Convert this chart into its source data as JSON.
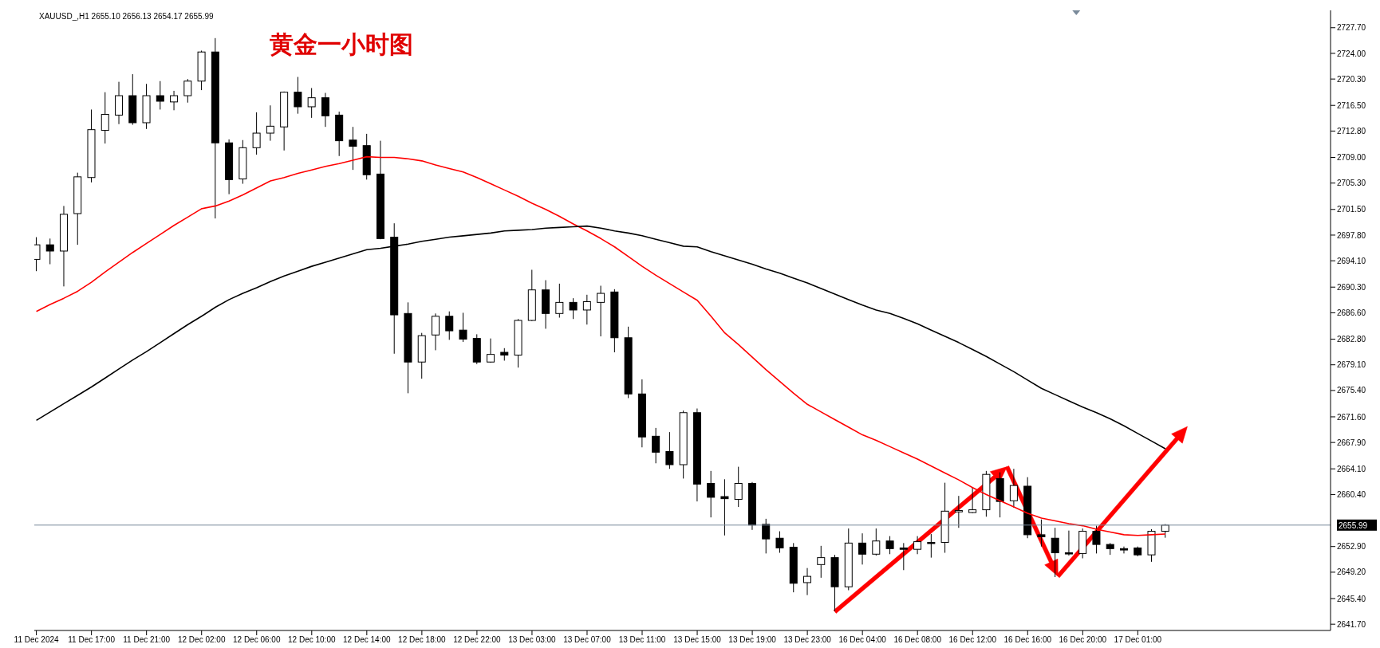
{
  "chart_data": {
    "type": "candlestick",
    "title": "黄金一小时图",
    "subtitle": "XAUUSD_,H1 2655.10 2656.13 2654.17 2655.99",
    "color": "#000000",
    "categories": [
      "11 Dec 2024",
      null,
      null,
      null,
      "11 Dec 17:00",
      null,
      null,
      null,
      "11 Dec 21:00",
      null,
      null,
      null,
      "12 Dec 02:00",
      null,
      null,
      null,
      "12 Dec 06:00",
      null,
      null,
      null,
      "12 Dec 10:00",
      null,
      null,
      null,
      "12 Dec 14:00",
      null,
      null,
      null,
      "12 Dec 18:00",
      null,
      null,
      null,
      "12 Dec 22:00",
      null,
      null,
      null,
      "13 Dec 03:00",
      null,
      null,
      null,
      "13 Dec 07:00",
      null,
      null,
      null,
      "13 Dec 11:00",
      null,
      null,
      null,
      "13 Dec 15:00",
      null,
      null,
      null,
      "13 Dec 19:00",
      null,
      null,
      null,
      "13 Dec 23:00",
      null,
      null,
      null,
      "16 Dec 04:00",
      null,
      null,
      null,
      "16 Dec 08:00",
      null,
      null,
      null,
      "16 Dec 12:00",
      null,
      null,
      null,
      "16 Dec 16:00",
      null,
      null,
      null,
      "16 Dec 20:00",
      null,
      null,
      null,
      "17 Dec 01:00",
      null,
      null
    ],
    "ohlc": [
      [
        2694.3,
        2697.5,
        2692.6,
        2696.4
      ],
      [
        2696.4,
        2697.3,
        2693.6,
        2695.5
      ],
      [
        2695.5,
        2702.0,
        2690.4,
        2700.8
      ],
      [
        2700.9,
        2706.8,
        2696.4,
        2706.2
      ],
      [
        2706.1,
        2715.9,
        2705.4,
        2713.0
      ],
      [
        2712.9,
        2718.4,
        2711.0,
        2715.2
      ],
      [
        2715.1,
        2719.9,
        2713.8,
        2717.9
      ],
      [
        2717.9,
        2721.0,
        2713.7,
        2714.0
      ],
      [
        2714.0,
        2719.6,
        2713.1,
        2717.9
      ],
      [
        2717.9,
        2720.0,
        2715.9,
        2717.1
      ],
      [
        2717.0,
        2718.6,
        2715.8,
        2717.9
      ],
      [
        2717.9,
        2720.3,
        2716.9,
        2720.0
      ],
      [
        2720.0,
        2724.4,
        2718.7,
        2724.2
      ],
      [
        2724.2,
        2726.2,
        2700.2,
        2711.1
      ],
      [
        2711.1,
        2711.6,
        2703.7,
        2705.8
      ],
      [
        2705.9,
        2711.5,
        2705.2,
        2710.4
      ],
      [
        2710.4,
        2715.5,
        2709.4,
        2712.5
      ],
      [
        2712.5,
        2716.5,
        2711.4,
        2713.5
      ],
      [
        2713.4,
        2718.5,
        2710.0,
        2718.4
      ],
      [
        2718.4,
        2720.6,
        2715.3,
        2716.3
      ],
      [
        2716.3,
        2719.0,
        2714.7,
        2717.6
      ],
      [
        2717.6,
        2718.3,
        2713.4,
        2715.0
      ],
      [
        2715.1,
        2715.6,
        2709.2,
        2711.4
      ],
      [
        2711.5,
        2713.4,
        2707.2,
        2710.6
      ],
      [
        2710.7,
        2712.4,
        2705.8,
        2706.5
      ],
      [
        2706.6,
        2711.4,
        2697.2,
        2697.3
      ],
      [
        2697.5,
        2699.5,
        2680.7,
        2686.3
      ],
      [
        2686.5,
        2688.1,
        2675.0,
        2679.5
      ],
      [
        2679.5,
        2683.7,
        2677.1,
        2683.3
      ],
      [
        2683.4,
        2686.5,
        2681.2,
        2686.1
      ],
      [
        2686.1,
        2686.8,
        2682.7,
        2684.0
      ],
      [
        2684.1,
        2686.6,
        2682.4,
        2682.8
      ],
      [
        2682.9,
        2683.5,
        2679.2,
        2679.5
      ],
      [
        2679.5,
        2682.9,
        2679.4,
        2680.6
      ],
      [
        2680.9,
        2681.5,
        2679.7,
        2680.5
      ],
      [
        2680.5,
        2685.7,
        2678.7,
        2685.5
      ],
      [
        2685.5,
        2692.8,
        2685.4,
        2689.9
      ],
      [
        2689.9,
        2691.3,
        2684.3,
        2686.5
      ],
      [
        2686.5,
        2690.8,
        2685.9,
        2688.1
      ],
      [
        2688.1,
        2688.7,
        2685.7,
        2687.0
      ],
      [
        2687.0,
        2689.2,
        2684.9,
        2688.2
      ],
      [
        2688.1,
        2690.5,
        2683.2,
        2689.4
      ],
      [
        2689.6,
        2690.0,
        2680.9,
        2683.0
      ],
      [
        2683.0,
        2684.6,
        2674.3,
        2674.9
      ],
      [
        2674.9,
        2677.0,
        2667.2,
        2668.7
      ],
      [
        2668.8,
        2670.0,
        2664.9,
        2666.5
      ],
      [
        2666.6,
        2669.4,
        2664.1,
        2664.7
      ],
      [
        2664.7,
        2672.5,
        2662.7,
        2672.2
      ],
      [
        2672.2,
        2672.8,
        2659.4,
        2661.9
      ],
      [
        2662.0,
        2663.8,
        2657.1,
        2660.0
      ],
      [
        2660.1,
        2662.6,
        2654.5,
        2659.8
      ],
      [
        2659.7,
        2664.4,
        2658.6,
        2662.0
      ],
      [
        2662.0,
        2662.2,
        2655.3,
        2656.0
      ],
      [
        2656.1,
        2656.9,
        2651.9,
        2654.0
      ],
      [
        2654.1,
        2655.1,
        2652.0,
        2652.7
      ],
      [
        2652.8,
        2653.4,
        2646.3,
        2647.6
      ],
      [
        2647.7,
        2649.8,
        2645.9,
        2648.6
      ],
      [
        2650.3,
        2653.0,
        2648.4,
        2651.3
      ],
      [
        2651.3,
        2651.7,
        2643.6,
        2647.1
      ],
      [
        2647.1,
        2655.5,
        2646.6,
        2653.4
      ],
      [
        2653.4,
        2654.8,
        2650.3,
        2651.8
      ],
      [
        2651.8,
        2655.5,
        2651.6,
        2653.7
      ],
      [
        2653.7,
        2654.4,
        2651.8,
        2652.6
      ],
      [
        2652.7,
        2653.4,
        2649.5,
        2652.5
      ],
      [
        2652.5,
        2654.4,
        2651.8,
        2653.6
      ],
      [
        2653.5,
        2654.7,
        2651.3,
        2653.4
      ],
      [
        2653.5,
        2662.1,
        2652.0,
        2658.0
      ],
      [
        2657.9,
        2660.2,
        2655.6,
        2658.1
      ],
      [
        2657.8,
        2661.4,
        2657.7,
        2658.2
      ],
      [
        2658.2,
        2663.8,
        2657.2,
        2663.3
      ],
      [
        2662.7,
        2663.6,
        2657.1,
        2659.4
      ],
      [
        2659.5,
        2664.1,
        2658.5,
        2661.7
      ],
      [
        2661.6,
        2662.9,
        2654.1,
        2654.6
      ],
      [
        2654.6,
        2656.8,
        2652.9,
        2654.3
      ],
      [
        2654.1,
        2655.6,
        2648.5,
        2652.0
      ],
      [
        2652.0,
        2655.2,
        2651.6,
        2651.9
      ],
      [
        2651.9,
        2655.5,
        2651.2,
        2655.1
      ],
      [
        2655.1,
        2655.9,
        2651.9,
        2653.2
      ],
      [
        2653.2,
        2653.4,
        2651.7,
        2652.6
      ],
      [
        2652.6,
        2652.9,
        2651.9,
        2652.4
      ],
      [
        2652.7,
        2652.9,
        2651.5,
        2651.7
      ],
      [
        2651.7,
        2655.4,
        2650.7,
        2655.1
      ],
      [
        2655.1,
        2656.13,
        2654.17,
        2655.99
      ]
    ],
    "series": [
      {
        "type": "line",
        "color": "#ff0000",
        "values": [
          2686.8,
          2687.8,
          2688.7,
          2689.7,
          2691.0,
          2692.5,
          2693.9,
          2695.3,
          2696.6,
          2697.9,
          2699.2,
          2700.4,
          2701.6,
          2702.0,
          2702.7,
          2703.6,
          2704.6,
          2705.6,
          2706.1,
          2706.7,
          2707.2,
          2707.7,
          2708.1,
          2708.6,
          2709.1,
          2709.0,
          2709.0,
          2708.8,
          2708.5,
          2707.9,
          2707.4,
          2706.9,
          2706.1,
          2705.2,
          2704.3,
          2703.4,
          2702.4,
          2701.5,
          2700.5,
          2699.4,
          2698.4,
          2697.3,
          2696.1,
          2694.7,
          2693.3,
          2692.0,
          2690.8,
          2689.6,
          2688.4,
          2686.1,
          2683.7,
          2682.0,
          2680.2,
          2678.4,
          2676.7,
          2675.0,
          2673.4,
          2672.3,
          2671.2,
          2670.1,
          2669.0,
          2668.2,
          2667.3,
          2666.4,
          2665.5,
          2664.5,
          2663.5,
          2662.5,
          2661.4,
          2660.4,
          2659.5,
          2658.6,
          2657.7,
          2657.0,
          2656.6,
          2656.2,
          2655.9,
          2655.4,
          2655.0,
          2654.6,
          2654.5,
          2654.6,
          2654.7
        ]
      },
      {
        "type": "line",
        "color": "#000000",
        "values": [
          2671.1,
          2672.3,
          2673.5,
          2674.7,
          2675.9,
          2677.2,
          2678.5,
          2679.8,
          2681.0,
          2682.3,
          2683.6,
          2684.9,
          2686.1,
          2687.4,
          2688.5,
          2689.4,
          2690.2,
          2691.1,
          2691.9,
          2692.6,
          2693.3,
          2693.9,
          2694.5,
          2695.1,
          2695.7,
          2695.9,
          2696.2,
          2696.5,
          2696.9,
          2697.2,
          2697.5,
          2697.7,
          2697.9,
          2698.1,
          2698.4,
          2698.5,
          2698.6,
          2698.8,
          2698.9,
          2699.0,
          2699.1,
          2698.8,
          2698.4,
          2698.1,
          2697.7,
          2697.2,
          2696.7,
          2696.2,
          2696.1,
          2695.4,
          2694.8,
          2694.2,
          2693.6,
          2692.9,
          2692.3,
          2691.6,
          2690.9,
          2690.1,
          2689.3,
          2688.5,
          2687.7,
          2687.0,
          2686.5,
          2685.8,
          2685.0,
          2684.1,
          2683.2,
          2682.3,
          2681.3,
          2680.3,
          2679.2,
          2678.1,
          2676.9,
          2675.7,
          2674.8,
          2673.9,
          2673.0,
          2672.2,
          2671.3,
          2670.3,
          2669.2,
          2668.1,
          2667.0
        ]
      }
    ],
    "ylim": [
      2640.8,
      2730.2
    ],
    "yticks": [
      {
        "value": 2727.7,
        "label": "2727.70"
      },
      {
        "value": 2724.0,
        "label": "2724.00"
      },
      {
        "value": 2720.3,
        "label": "2720.30"
      },
      {
        "value": 2716.5,
        "label": "2716.50"
      },
      {
        "value": 2712.8,
        "label": "2712.80"
      },
      {
        "value": 2709.0,
        "label": "2709.00"
      },
      {
        "value": 2705.3,
        "label": "2705.30"
      },
      {
        "value": 2701.5,
        "label": "2701.50"
      },
      {
        "value": 2697.8,
        "label": "2697.80"
      },
      {
        "value": 2694.1,
        "label": "2694.10"
      },
      {
        "value": 2690.3,
        "label": "2690.30"
      },
      {
        "value": 2686.6,
        "label": "2686.60"
      },
      {
        "value": 2682.8,
        "label": "2682.80"
      },
      {
        "value": 2679.1,
        "label": "2679.10"
      },
      {
        "value": 2675.4,
        "label": "2675.40"
      },
      {
        "value": 2671.6,
        "label": "2671.60"
      },
      {
        "value": 2667.9,
        "label": "2667.90"
      },
      {
        "value": 2664.1,
        "label": "2664.10"
      },
      {
        "value": 2660.4,
        "label": "2660.40"
      },
      {
        "value": 2652.9,
        "label": "2652.90"
      },
      {
        "value": 2649.2,
        "label": "2649.20"
      },
      {
        "value": 2645.4,
        "label": "2645.40"
      },
      {
        "value": 2641.7,
        "label": "2641.70"
      }
    ],
    "ref_lines": [
      {
        "axis": "y",
        "value": 2655.99,
        "label": "2655.99",
        "color": "#778899"
      }
    ],
    "grid": false,
    "legend": false,
    "marker": "none",
    "line_style": "solid"
  }
}
